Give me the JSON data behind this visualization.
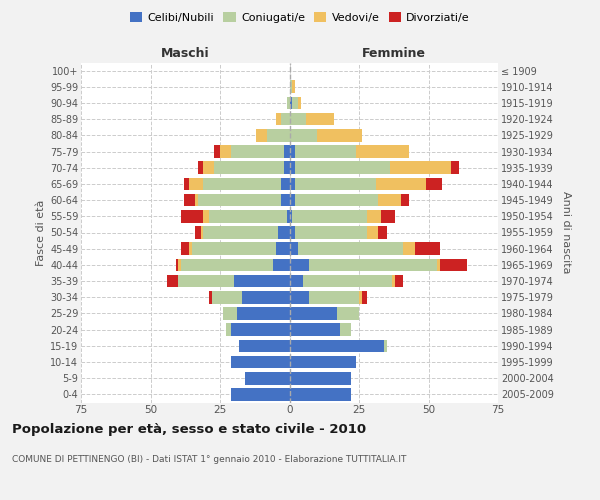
{
  "age_groups": [
    "0-4",
    "5-9",
    "10-14",
    "15-19",
    "20-24",
    "25-29",
    "30-34",
    "35-39",
    "40-44",
    "45-49",
    "50-54",
    "55-59",
    "60-64",
    "65-69",
    "70-74",
    "75-79",
    "80-84",
    "85-89",
    "90-94",
    "95-99",
    "100+"
  ],
  "birth_years": [
    "2005-2009",
    "2000-2004",
    "1995-1999",
    "1990-1994",
    "1985-1989",
    "1980-1984",
    "1975-1979",
    "1970-1974",
    "1965-1969",
    "1960-1964",
    "1955-1959",
    "1950-1954",
    "1945-1949",
    "1940-1944",
    "1935-1939",
    "1930-1934",
    "1925-1929",
    "1920-1924",
    "1915-1919",
    "1910-1914",
    "≤ 1909"
  ],
  "males": {
    "celibi": [
      21,
      16,
      21,
      18,
      21,
      19,
      17,
      20,
      6,
      5,
      4,
      1,
      3,
      3,
      2,
      2,
      0,
      0,
      0,
      0,
      0
    ],
    "coniugati": [
      0,
      0,
      0,
      0,
      2,
      5,
      11,
      20,
      33,
      30,
      27,
      28,
      30,
      28,
      25,
      19,
      8,
      3,
      1,
      0,
      0
    ],
    "vedovi": [
      0,
      0,
      0,
      0,
      0,
      0,
      0,
      0,
      1,
      1,
      1,
      2,
      1,
      5,
      4,
      4,
      4,
      2,
      0,
      0,
      0
    ],
    "divorziati": [
      0,
      0,
      0,
      0,
      0,
      0,
      1,
      4,
      1,
      3,
      2,
      8,
      4,
      2,
      2,
      2,
      0,
      0,
      0,
      0,
      0
    ]
  },
  "females": {
    "nubili": [
      22,
      22,
      24,
      34,
      18,
      17,
      7,
      5,
      7,
      3,
      2,
      1,
      2,
      2,
      2,
      2,
      0,
      0,
      1,
      0,
      0
    ],
    "coniugate": [
      0,
      0,
      0,
      1,
      4,
      8,
      18,
      32,
      46,
      38,
      26,
      27,
      30,
      29,
      34,
      22,
      10,
      6,
      2,
      1,
      0
    ],
    "vedove": [
      0,
      0,
      0,
      0,
      0,
      0,
      1,
      1,
      1,
      4,
      4,
      5,
      8,
      18,
      22,
      19,
      16,
      10,
      1,
      1,
      0
    ],
    "divorziate": [
      0,
      0,
      0,
      0,
      0,
      0,
      2,
      3,
      10,
      9,
      3,
      5,
      3,
      6,
      3,
      0,
      0,
      0,
      0,
      0,
      0
    ]
  },
  "colors": {
    "celibi": "#4472c4",
    "coniugati": "#b8cfa0",
    "vedovi": "#f0c060",
    "divorziati": "#cc2222"
  },
  "xlim": 75,
  "title": "Popolazione per età, sesso e stato civile - 2010",
  "subtitle": "COMUNE DI PETTINENGO (BI) - Dati ISTAT 1° gennaio 2010 - Elaborazione TUTTITALIA.IT",
  "ylabel_left": "Fasce di età",
  "ylabel_right": "Anni di nascita",
  "xlabel_left": "Maschi",
  "xlabel_right": "Femmine",
  "bg_color": "#f2f2f2",
  "plot_bg_color": "#ffffff"
}
